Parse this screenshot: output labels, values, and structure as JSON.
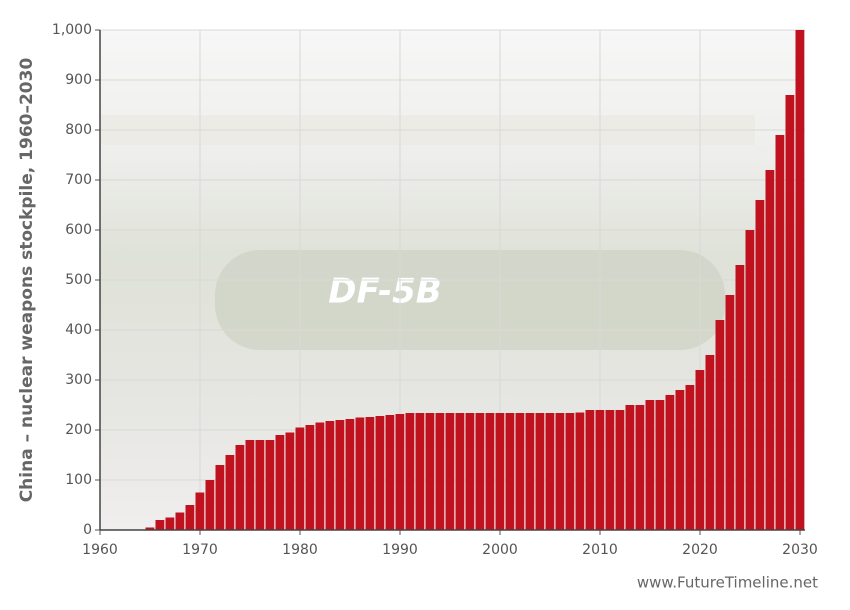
{
  "chart_data": {
    "type": "bar",
    "ylabel": "China – nuclear weapons stockpile, 1960–2030",
    "source": "www.FutureTimeline.net",
    "x": [
      1965,
      1966,
      1967,
      1968,
      1969,
      1970,
      1971,
      1972,
      1973,
      1974,
      1975,
      1976,
      1977,
      1978,
      1979,
      1980,
      1981,
      1982,
      1983,
      1984,
      1985,
      1986,
      1987,
      1988,
      1989,
      1990,
      1991,
      1992,
      1993,
      1994,
      1995,
      1996,
      1997,
      1998,
      1999,
      2000,
      2001,
      2002,
      2003,
      2004,
      2005,
      2006,
      2007,
      2008,
      2009,
      2010,
      2011,
      2012,
      2013,
      2014,
      2015,
      2016,
      2017,
      2018,
      2019,
      2020,
      2021,
      2022,
      2023,
      2024,
      2025,
      2026,
      2027,
      2028,
      2029,
      2030
    ],
    "values": [
      5,
      20,
      25,
      35,
      50,
      75,
      100,
      130,
      150,
      170,
      180,
      180,
      180,
      190,
      195,
      205,
      210,
      215,
      218,
      220,
      222,
      225,
      226,
      228,
      230,
      232,
      234,
      234,
      234,
      234,
      234,
      234,
      234,
      234,
      234,
      234,
      234,
      234,
      234,
      234,
      234,
      234,
      234,
      235,
      240,
      240,
      240,
      240,
      250,
      250,
      260,
      260,
      270,
      280,
      290,
      320,
      350,
      420,
      470,
      530,
      600,
      660,
      720,
      790,
      870,
      1000
    ],
    "color": "#c0111f",
    "xlim": [
      1960,
      2030.5
    ],
    "xticks": [
      1960,
      1970,
      1980,
      1990,
      2000,
      2010,
      2020,
      2030
    ],
    "ylim": [
      0,
      1000
    ],
    "yticks": [
      0,
      100,
      200,
      300,
      400,
      500,
      600,
      700,
      800,
      900,
      {
        "value": 1000,
        "label": "1,000"
      }
    ],
    "grid": true
  }
}
